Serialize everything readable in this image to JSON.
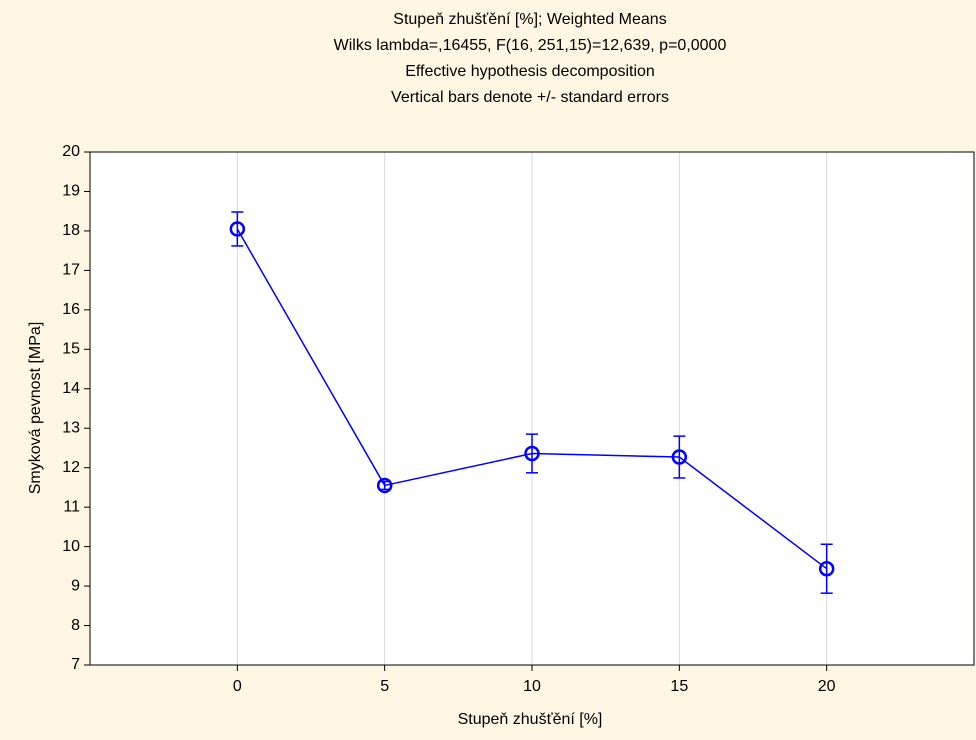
{
  "chart_data": {
    "type": "line",
    "title": [
      "Stupeň zhušťění [%]; Weighted Means",
      "Wilks lambda=,16455, F(16, 251,15)=12,639, p=0,0000",
      "Effective hypothesis decomposition",
      "Vertical bars denote +/- standard errors"
    ],
    "x_label": "Stupeň zhušťění [%]",
    "y_label": "Smyková pevnost [MPa]",
    "x": [
      0,
      5,
      10,
      15,
      20
    ],
    "series": [
      {
        "color": "#0000ff",
        "values": [
          18.05,
          11.55,
          12.36,
          12.27,
          9.44
        ],
        "errors": [
          0.43,
          0.1,
          0.49,
          0.53,
          0.62
        ]
      }
    ],
    "xlim": [
      -5,
      25
    ],
    "xticks": [
      0,
      5,
      10,
      15,
      20
    ],
    "ylim": [
      7,
      20
    ],
    "yticks": [
      7,
      8,
      9,
      10,
      11,
      12,
      13,
      14,
      15,
      16,
      17,
      18,
      19,
      20
    ],
    "grid": "x"
  }
}
